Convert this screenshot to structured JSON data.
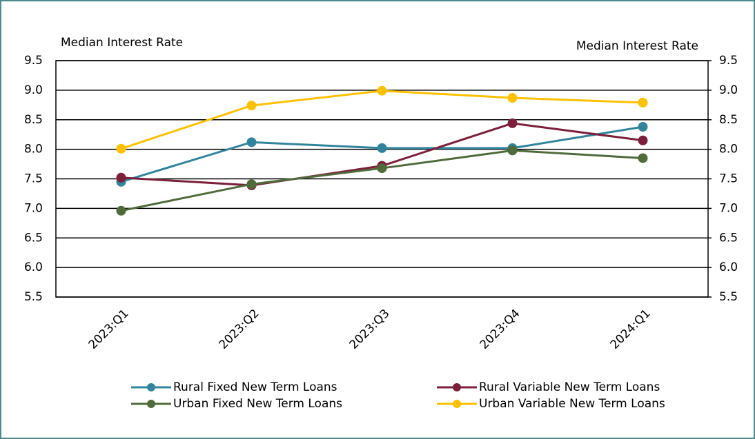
{
  "chart_data": {
    "type": "line",
    "y_label": "Median Interest Rate",
    "y2_label": "Median Interest Rate",
    "categories": [
      "2023:Q1",
      "2023:Q2",
      "2023:Q3",
      "2023:Q4",
      "2024:Q1"
    ],
    "series": [
      {
        "name": "Rural Fixed New Term Loans",
        "color": "#31849b",
        "values": [
          7.45,
          8.12,
          8.02,
          8.02,
          8.38
        ]
      },
      {
        "name": "Rural Variable New Term Loans",
        "color": "#7b1f3a",
        "values": [
          7.52,
          7.39,
          7.72,
          8.44,
          8.15
        ]
      },
      {
        "name": "Urban Fixed New Term Loans",
        "color": "#4f6b3a",
        "values": [
          6.96,
          7.41,
          7.68,
          7.98,
          7.85
        ]
      },
      {
        "name": "Urban Variable New Term Loans",
        "color": "#ffc000",
        "values": [
          8.01,
          8.74,
          8.99,
          8.87,
          8.79
        ]
      }
    ],
    "ylim": [
      5.5,
      9.5
    ],
    "yticks": [
      5.5,
      {
        "value": 6,
        "label": "6.0"
      },
      6.5,
      {
        "value": 7,
        "label": "7.0"
      },
      7.5,
      {
        "value": 8,
        "label": "8.0"
      },
      8.5,
      {
        "value": 9,
        "label": "9.0"
      },
      9.5
    ],
    "y2lim": [
      5.5,
      9.5
    ],
    "y2ticks": [
      5.5,
      {
        "value": 6,
        "label": "6.0"
      },
      6.5,
      {
        "value": 7,
        "label": "7.0"
      },
      7.5,
      {
        "value": 8,
        "label": "8.0"
      },
      8.5,
      {
        "value": 9,
        "label": "9.0"
      },
      9.5
    ],
    "grid": true,
    "legend": "bottom"
  }
}
